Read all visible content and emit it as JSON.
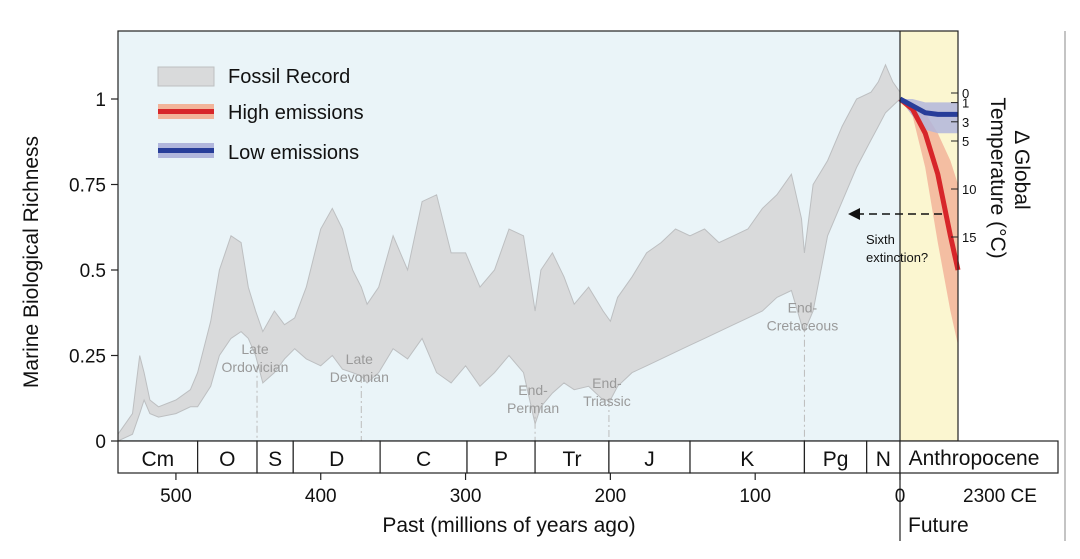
{
  "chart_data": {
    "type": "area",
    "ylabel": "Marine Biological Richness",
    "xlabel": "Past (millions of years ago)",
    "right_axis_label_line1": "Δ Global",
    "right_axis_label_line2": "Temperature (°C)",
    "xlim_mya": [
      540,
      0
    ],
    "ylim": [
      0,
      1.15
    ],
    "x_ticks": [
      500,
      400,
      300,
      200,
      100,
      0
    ],
    "y_ticks": [
      0,
      0.25,
      0.5,
      0.75,
      1
    ],
    "y_tick_labels": [
      "0",
      "0.25",
      "0.5",
      "0.75",
      "1"
    ],
    "temp_ticks": [
      0,
      1,
      3,
      5,
      10,
      15
    ],
    "temp_range": [
      0,
      18
    ],
    "future_label": "2300 CE",
    "future_section_label": "Future",
    "anthropocene_label": "Anthropocene",
    "legend": [
      {
        "name": "Fossil Record",
        "kind": "fossil"
      },
      {
        "name": "High emissions",
        "kind": "high"
      },
      {
        "name": "Low emissions",
        "kind": "low"
      }
    ],
    "periods": [
      {
        "label": "Cm",
        "start": 541,
        "end": 485
      },
      {
        "label": "O",
        "start": 485,
        "end": 444
      },
      {
        "label": "S",
        "start": 444,
        "end": 419
      },
      {
        "label": "D",
        "start": 419,
        "end": 359
      },
      {
        "label": "C",
        "start": 359,
        "end": 299
      },
      {
        "label": "P",
        "start": 299,
        "end": 252
      },
      {
        "label": "Tr",
        "start": 252,
        "end": 201
      },
      {
        "label": "J",
        "start": 201,
        "end": 145
      },
      {
        "label": "K",
        "start": 145,
        "end": 66
      },
      {
        "label": "Pg",
        "start": 66,
        "end": 23
      },
      {
        "label": "N",
        "start": 23,
        "end": 0
      }
    ],
    "extinctions": [
      {
        "line1": "Late",
        "line2": "Ordovician",
        "t": 444,
        "value": 0.22
      },
      {
        "line1": "Late",
        "line2": "Devonian",
        "t": 372,
        "value": 0.19
      },
      {
        "line1": "End-",
        "line2": "Permian",
        "t": 252,
        "value": 0.1
      },
      {
        "line1": "End-",
        "line2": "Triassic",
        "t": 201,
        "value": 0.12
      },
      {
        "line1": "End-",
        "line2": "Cretaceous",
        "t": 66,
        "value": 0.34
      }
    ],
    "fossil_record": {
      "t": [
        540,
        530,
        525,
        522,
        518,
        512,
        500,
        490,
        485,
        476,
        470,
        462,
        455,
        450,
        445,
        440,
        432,
        425,
        418,
        410,
        400,
        392,
        385,
        378,
        372,
        368,
        360,
        350,
        340,
        330,
        320,
        310,
        300,
        290,
        280,
        270,
        260,
        252,
        248,
        240,
        232,
        225,
        215,
        205,
        200,
        195,
        185,
        175,
        165,
        155,
        145,
        135,
        125,
        115,
        105,
        95,
        85,
        75,
        68,
        66,
        60,
        50,
        40,
        30,
        20,
        15,
        10,
        5,
        0
      ],
      "lower": [
        0.0,
        0.02,
        0.08,
        0.12,
        0.08,
        0.07,
        0.08,
        0.1,
        0.1,
        0.16,
        0.25,
        0.3,
        0.32,
        0.3,
        0.25,
        0.17,
        0.2,
        0.24,
        0.27,
        0.24,
        0.22,
        0.25,
        0.21,
        0.2,
        0.19,
        0.17,
        0.2,
        0.27,
        0.24,
        0.3,
        0.2,
        0.17,
        0.22,
        0.16,
        0.2,
        0.25,
        0.2,
        0.05,
        0.1,
        0.14,
        0.17,
        0.15,
        0.16,
        0.12,
        0.12,
        0.16,
        0.2,
        0.22,
        0.24,
        0.26,
        0.28,
        0.3,
        0.32,
        0.34,
        0.36,
        0.38,
        0.42,
        0.44,
        0.34,
        0.32,
        0.38,
        0.6,
        0.7,
        0.8,
        0.88,
        0.92,
        0.96,
        0.98,
        1.0
      ],
      "upper": [
        0.02,
        0.08,
        0.25,
        0.2,
        0.12,
        0.1,
        0.12,
        0.15,
        0.2,
        0.35,
        0.5,
        0.6,
        0.58,
        0.45,
        0.38,
        0.32,
        0.38,
        0.34,
        0.36,
        0.45,
        0.62,
        0.68,
        0.62,
        0.5,
        0.45,
        0.4,
        0.45,
        0.6,
        0.5,
        0.7,
        0.72,
        0.55,
        0.55,
        0.45,
        0.5,
        0.62,
        0.6,
        0.38,
        0.5,
        0.55,
        0.48,
        0.4,
        0.45,
        0.38,
        0.35,
        0.42,
        0.48,
        0.55,
        0.58,
        0.62,
        0.6,
        0.62,
        0.58,
        0.6,
        0.62,
        0.68,
        0.72,
        0.78,
        0.65,
        0.55,
        0.75,
        0.82,
        0.92,
        1.0,
        1.02,
        1.05,
        1.1,
        1.05,
        1.02
      ]
    },
    "future_x_labels": [
      0,
      2300
    ],
    "high_emissions": {
      "t": [
        0,
        0.5,
        1,
        1.5,
        2,
        2.3
      ],
      "value": [
        1.0,
        0.97,
        0.9,
        0.78,
        0.6,
        0.5
      ],
      "lower": [
        1.0,
        0.95,
        0.8,
        0.58,
        0.38,
        0.28
      ],
      "upper": [
        1.0,
        0.99,
        0.96,
        0.9,
        0.82,
        0.75
      ]
    },
    "low_emissions": {
      "t": [
        0,
        0.5,
        1,
        1.5,
        2,
        2.3
      ],
      "value": [
        1.0,
        0.98,
        0.96,
        0.955,
        0.955,
        0.955
      ],
      "lower": [
        1.0,
        0.95,
        0.91,
        0.9,
        0.9,
        0.9
      ],
      "upper": [
        1.0,
        1.0,
        0.99,
        0.99,
        0.99,
        0.99
      ]
    },
    "annotation": {
      "line1": "Sixth",
      "line2": "extinction?"
    }
  },
  "colors": {
    "past_bg": "#eaf4f8",
    "future_bg": "#fbf6d0",
    "fossil_fill": "#d9dadb",
    "fossil_stroke": "#bdbfc1",
    "high_line": "#d7262a",
    "high_band": "#f2b49a",
    "low_line": "#273d99",
    "low_band": "#b1b6dc",
    "axis": "#222222",
    "event_line": "#bcbcbc"
  }
}
